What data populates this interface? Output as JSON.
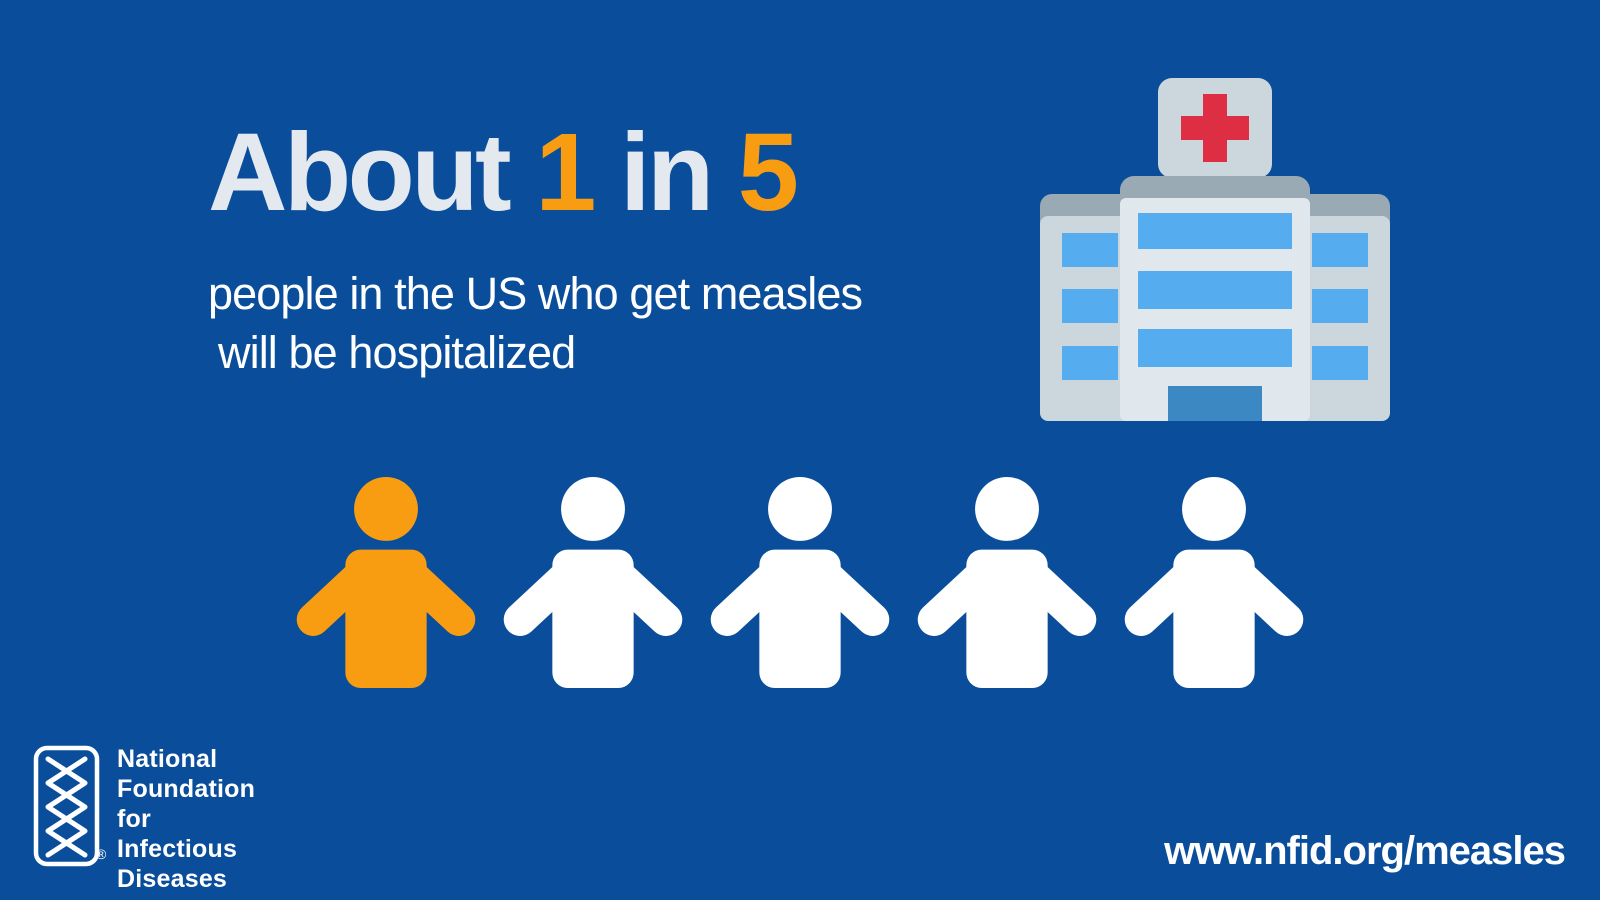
{
  "colors": {
    "background": "#0A4E9B",
    "accent_orange": "#F89C12",
    "headline_light": "#E4E9F0",
    "white": "#FFFFFF",
    "hospital_sign": "#CCD6DD",
    "hospital_wing": "#CCD6DD",
    "hospital_tower": "#E1E8ED",
    "hospital_band": "#99AAB5",
    "hospital_window": "#55ACEE",
    "hospital_door": "#3B88C3",
    "hospital_cross": "#DD2E44"
  },
  "headline": {
    "prefix": "About ",
    "numerator": "1",
    "connector": " in ",
    "denominator": "5"
  },
  "subtitle": {
    "line1": "people in the US who get measles",
    "line2": "will be hospitalized"
  },
  "pictogram": {
    "total_people": 5,
    "highlighted_people": 1
  },
  "logo": {
    "lines": [
      "National",
      "Foundation for",
      "Infectious",
      "Diseases"
    ],
    "registered_mark": "®"
  },
  "footer": {
    "url": "www.nfid.org/measles"
  }
}
